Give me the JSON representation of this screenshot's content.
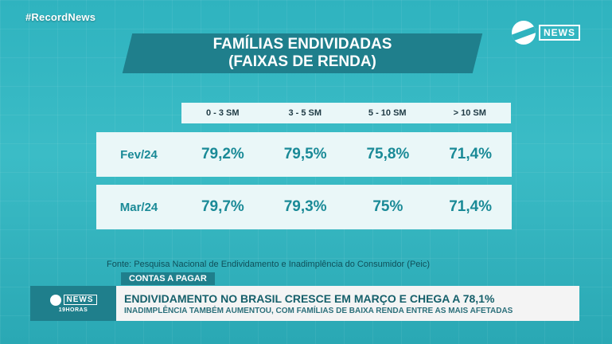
{
  "watermark": "#RecordNews",
  "logo": {
    "text": "NEWS"
  },
  "title": {
    "line1": "FAMÍLIAS ENDIVIDADAS",
    "line2": "(FAIXAS DE RENDA)"
  },
  "table": {
    "columns": [
      "0 - 3 SM",
      "3 - 5 SM",
      "5 - 10 SM",
      "> 10 SM"
    ],
    "rows": [
      {
        "label": "Fev/24",
        "values": [
          "79,2%",
          "79,5%",
          "75,8%",
          "71,4%"
        ]
      },
      {
        "label": "Mar/24",
        "values": [
          "79,7%",
          "79,3%",
          "75%",
          "71,4%"
        ]
      }
    ]
  },
  "source": "Fonte: Pesquisa Nacional de Endividamento e Inadimplência do Consumidor (Peic)",
  "ticker": {
    "tag": "CONTAS A PAGAR",
    "logo_text": "NEWS",
    "logo_sub": "19HORAS",
    "headline": "ENDIVIDAMENTO NO BRASIL CRESCE EM MARÇO E CHEGA A 78,1%",
    "subline": "INADIMPLÊNCIA TAMBÉM AUMENTOU, COM FAMÍLIAS DE BAIXA RENDA ENTRE AS MAIS AFETADAS"
  }
}
